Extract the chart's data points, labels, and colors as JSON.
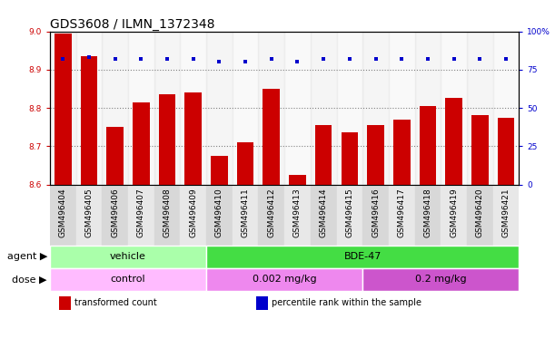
{
  "title": "GDS3608 / ILMN_1372348",
  "categories": [
    "GSM496404",
    "GSM496405",
    "GSM496406",
    "GSM496407",
    "GSM496408",
    "GSM496409",
    "GSM496410",
    "GSM496411",
    "GSM496412",
    "GSM496413",
    "GSM496414",
    "GSM496415",
    "GSM496416",
    "GSM496417",
    "GSM496418",
    "GSM496419",
    "GSM496420",
    "GSM496421"
  ],
  "bar_values": [
    8.995,
    8.935,
    8.75,
    8.815,
    8.835,
    8.84,
    8.675,
    8.71,
    8.85,
    8.625,
    8.755,
    8.735,
    8.755,
    8.77,
    8.805,
    8.825,
    8.78,
    8.775
  ],
  "percentile_values": [
    82,
    83,
    82,
    82,
    82,
    82,
    80,
    80,
    82,
    80,
    82,
    82,
    82,
    82,
    82,
    82,
    82,
    82
  ],
  "bar_color": "#cc0000",
  "percentile_color": "#0000cc",
  "ylim_left": [
    8.6,
    9.0
  ],
  "ylim_right": [
    0,
    100
  ],
  "yticks_left": [
    8.6,
    8.7,
    8.8,
    8.9,
    9.0
  ],
  "yticks_right": [
    0,
    25,
    50,
    75,
    100
  ],
  "ytick_labels_right": [
    "0",
    "25",
    "50",
    "75",
    "100%"
  ],
  "grid_lines": [
    8.7,
    8.8,
    8.9
  ],
  "agent_groups": [
    {
      "label": "vehicle",
      "start": 0,
      "end": 6,
      "color": "#aaffaa"
    },
    {
      "label": "BDE-47",
      "start": 6,
      "end": 18,
      "color": "#44dd44"
    }
  ],
  "dose_groups": [
    {
      "label": "control",
      "start": 0,
      "end": 6,
      "color": "#ffbbff"
    },
    {
      "label": "0.002 mg/kg",
      "start": 6,
      "end": 12,
      "color": "#ee88ee"
    },
    {
      "label": "0.2 mg/kg",
      "start": 12,
      "end": 18,
      "color": "#cc55cc"
    }
  ],
  "agent_label": "agent",
  "dose_label": "dose",
  "legend_items": [
    {
      "color": "#cc0000",
      "label": "transformed count"
    },
    {
      "color": "#0000cc",
      "label": "percentile rank within the sample"
    }
  ],
  "bar_width": 0.65,
  "title_fontsize": 10,
  "tick_fontsize": 6.5,
  "label_fontsize": 8
}
